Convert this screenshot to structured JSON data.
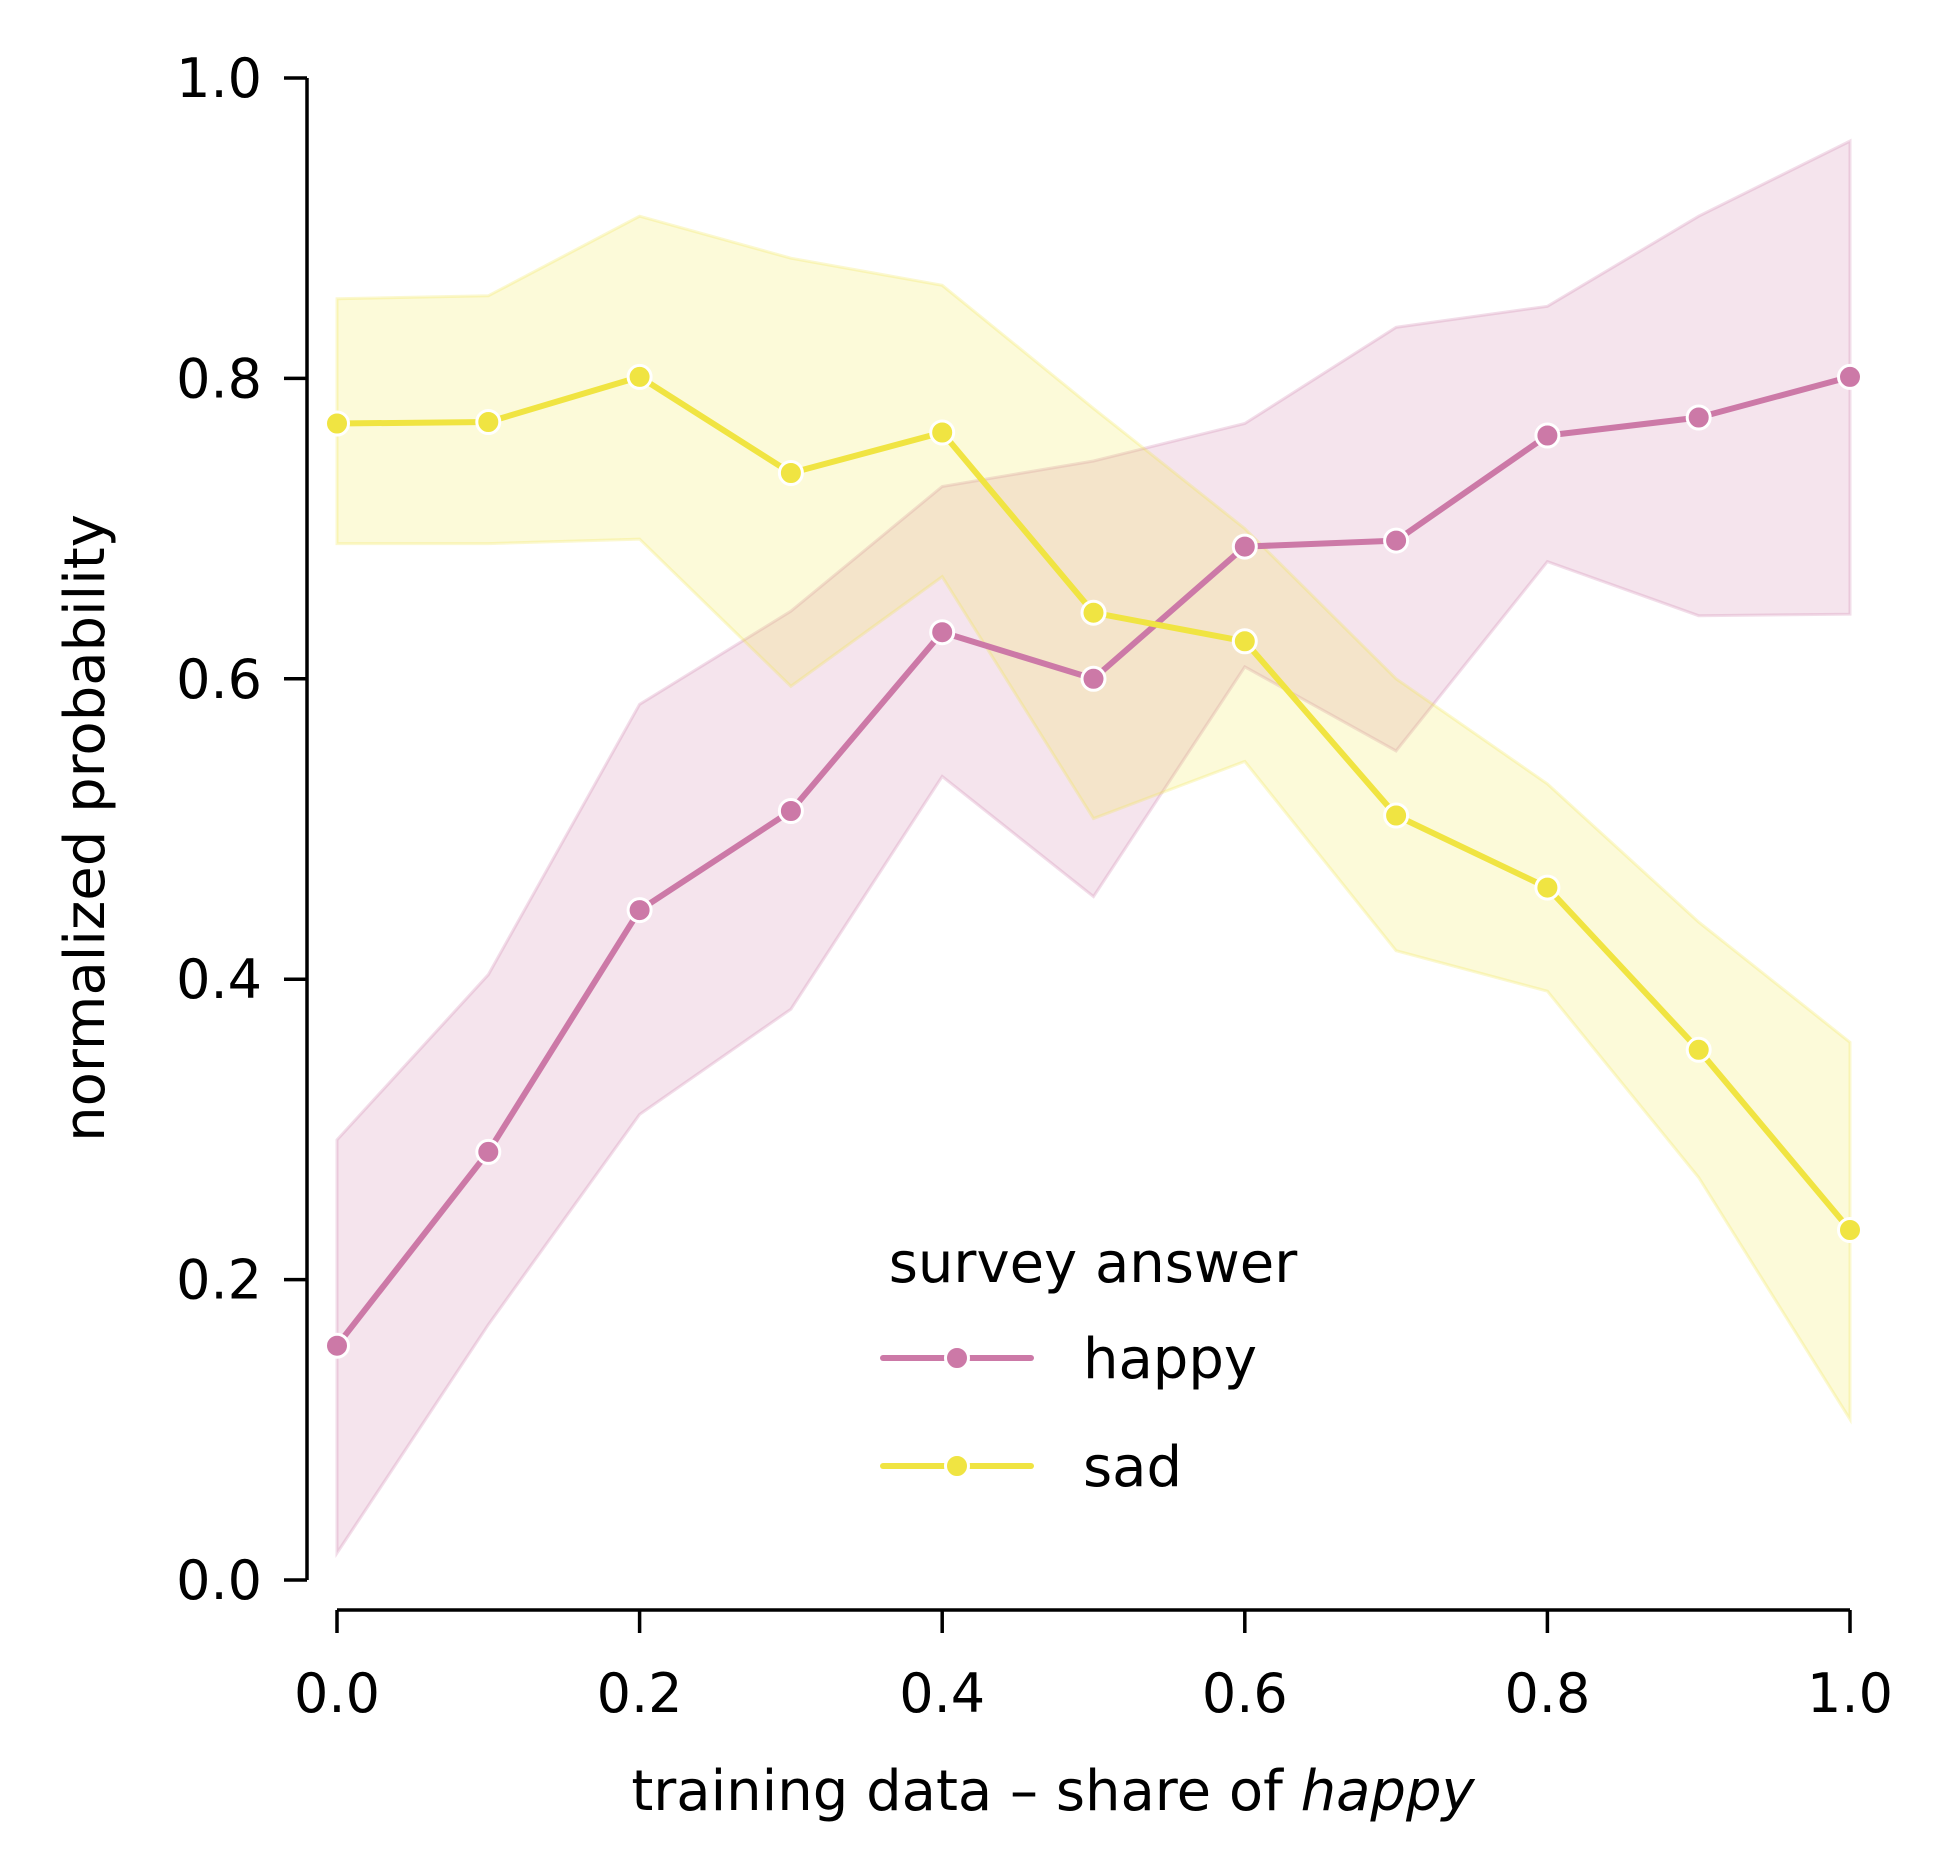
{
  "chart_data": {
    "type": "line",
    "title": "",
    "xlabel": "training data – share of ",
    "xlabel_emphasis": "happy",
    "ylabel": "normalized probability",
    "xlim": [
      0.0,
      1.0
    ],
    "ylim": [
      0.0,
      1.0
    ],
    "x": [
      0.0,
      0.1,
      0.2,
      0.3,
      0.4,
      0.5,
      0.6,
      0.7,
      0.8,
      0.9,
      1.0
    ],
    "x_ticks": [
      0.0,
      0.2,
      0.4,
      0.6,
      0.8,
      1.0
    ],
    "x_tick_labels": [
      "0.0",
      "0.2",
      "0.4",
      "0.6",
      "0.8",
      "1.0"
    ],
    "y_ticks": [
      0.0,
      0.2,
      0.4,
      0.6,
      0.8,
      1.0
    ],
    "y_tick_labels": [
      "0.0",
      "0.2",
      "0.4",
      "0.6",
      "0.8",
      "1.0"
    ],
    "grid": false,
    "legend": {
      "title": "survey answer",
      "position": "lower-center"
    },
    "series": [
      {
        "name": "happy",
        "color": "#CC79A7",
        "band_color": "#CC79A7",
        "values": [
          0.156,
          0.285,
          0.446,
          0.512,
          0.631,
          0.6,
          0.688,
          0.692,
          0.762,
          0.774,
          0.801
        ],
        "lower": [
          0.018,
          0.17,
          0.31,
          0.38,
          0.535,
          0.455,
          0.608,
          0.552,
          0.678,
          0.642,
          0.643
        ],
        "upper": [
          0.293,
          0.403,
          0.583,
          0.645,
          0.728,
          0.745,
          0.77,
          0.834,
          0.848,
          0.908,
          0.958
        ]
      },
      {
        "name": "sad",
        "color": "#F0E442",
        "band_color": "#F0E442",
        "values": [
          0.77,
          0.771,
          0.801,
          0.737,
          0.764,
          0.644,
          0.625,
          0.509,
          0.461,
          0.353,
          0.233
        ],
        "lower": [
          0.69,
          0.69,
          0.693,
          0.595,
          0.668,
          0.507,
          0.545,
          0.419,
          0.392,
          0.268,
          0.107
        ],
        "upper": [
          0.853,
          0.855,
          0.908,
          0.88,
          0.862,
          0.78,
          0.7,
          0.6,
          0.53,
          0.438,
          0.358
        ]
      }
    ]
  }
}
